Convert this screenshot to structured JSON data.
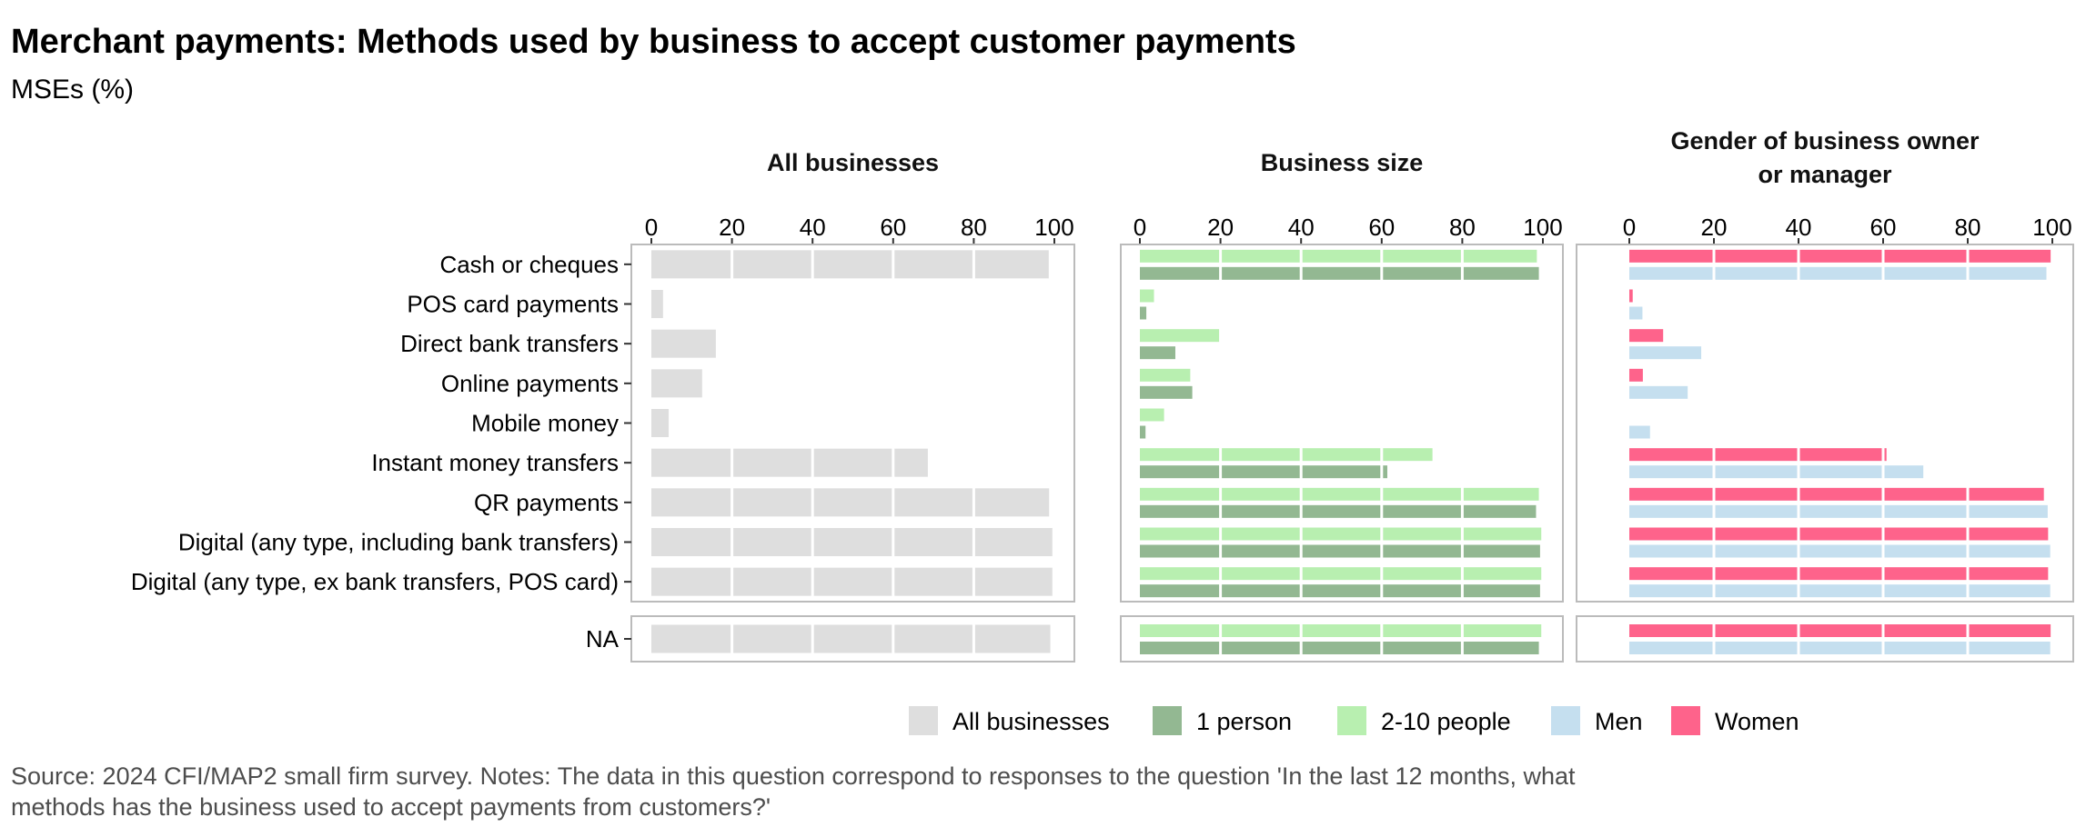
{
  "chart_data": {
    "type": "bar",
    "orientation": "horizontal",
    "title": "Merchant payments: Methods used by business to accept customer payments",
    "subtitle": "MSEs (%)",
    "xlim": [
      0,
      100
    ],
    "ticks": [
      "0",
      "20",
      "40",
      "60",
      "80",
      "100"
    ],
    "categories": [
      "Cash or cheques",
      "POS card payments",
      "Direct bank transfers",
      "Online payments",
      "Mobile money",
      "Instant money transfers",
      "QR payments",
      "Digital (any type, including bank transfers)",
      "Digital (any type, ex bank transfers, POS card)"
    ],
    "na_label": "NA",
    "panels": [
      {
        "title": "All businesses",
        "series": [
          {
            "name": "All businesses",
            "color": "#dedede",
            "values": [
              98.6,
              2.9,
              16,
              12.6,
              4.3,
              68.6,
              98.7,
              99.5,
              99.5
            ],
            "na": 99
          }
        ]
      },
      {
        "title": "Business size",
        "series": [
          {
            "name": "2-10 people",
            "color": "#b8efb0",
            "values": [
              98.5,
              3.5,
              19.7,
              12.5,
              6,
              72.6,
              99,
              99.6,
              99.6
            ],
            "na": 99.6
          },
          {
            "name": "1 person",
            "color": "#93b892",
            "values": [
              99,
              1.6,
              8.8,
              13,
              1.4,
              61.4,
              98.3,
              99.3,
              99.3
            ],
            "na": 99
          }
        ]
      },
      {
        "title": "Gender of business owner",
        "title_line2": "or manager",
        "series": [
          {
            "name": "Women",
            "color": "#fe638b",
            "values": [
              99.6,
              0.8,
              8,
              3.2,
              0,
              60.8,
              98,
              99,
              99
            ],
            "na": 99.6
          },
          {
            "name": "Men",
            "color": "#c5dfef",
            "values": [
              98.6,
              3.1,
              17,
              13.8,
              4.9,
              69.5,
              98.9,
              99.5,
              99.5
            ],
            "na": 99.5
          }
        ]
      }
    ],
    "legend": [
      {
        "label": "All businesses",
        "color": "#dedede"
      },
      {
        "label": "1 person",
        "color": "#93b892"
      },
      {
        "label": "2-10 people",
        "color": "#b8efb0"
      },
      {
        "label": "Men",
        "color": "#c5dfef"
      },
      {
        "label": "Women",
        "color": "#fe638b"
      }
    ],
    "legend_position": "bottom-right",
    "source_line1": "Source: 2024 CFI/MAP2 small firm survey. Notes: The data in this question correspond to responses to the question 'In the last 12 months, what",
    "source_line2": "methods has the business used to accept payments from customers?'"
  }
}
